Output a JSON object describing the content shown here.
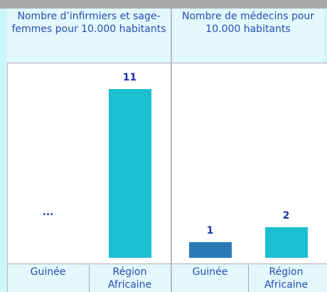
{
  "chart_data": [
    {
      "type": "bar",
      "title": "Nombre d’infirmiers et sage-femmes pour 10.000 habitants",
      "categories": [
        "Guinée",
        "Région Africaine"
      ],
      "values": [
        null,
        11
      ],
      "value_labels": [
        "...",
        "11"
      ],
      "colors": [
        "#2a7ab8",
        "#1cbfd0"
      ]
    },
    {
      "type": "bar",
      "title": "Nombre de médecins pour 10.000 habitants",
      "categories": [
        "Guinée",
        "Région Africaine"
      ],
      "values": [
        1,
        2
      ],
      "value_labels": [
        "1",
        "2"
      ],
      "colors": [
        "#2a7ab8",
        "#1cbfd0"
      ]
    }
  ]
}
